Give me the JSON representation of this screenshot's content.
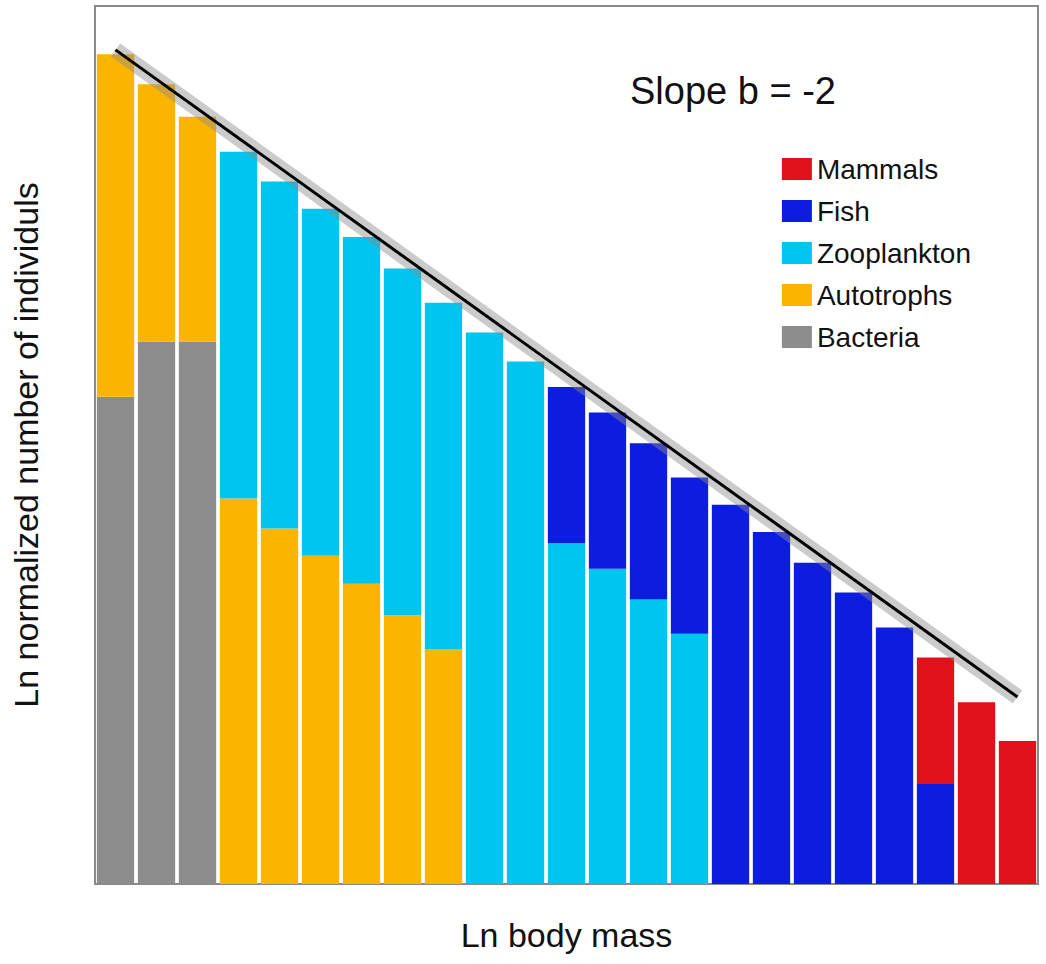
{
  "chart_data": {
    "type": "bar",
    "stacked": true,
    "x_label": "Ln body mass",
    "y_label": "Ln normalized number of individuls",
    "annotation": "Slope b = -2",
    "categories": [
      null,
      null,
      null,
      null,
      null,
      null,
      null,
      null,
      null,
      null,
      null,
      null,
      null,
      null,
      null,
      null,
      null,
      null,
      null,
      null,
      null,
      null,
      null
    ],
    "ylim": [
      0,
      100
    ],
    "tick_labels": false,
    "grid": false,
    "legend": "top-right",
    "series": [
      {
        "name": "Mammals",
        "color": "#e0111b",
        "values": [
          null,
          null,
          null,
          null,
          null,
          null,
          null,
          null,
          null,
          null,
          null,
          null,
          null,
          null,
          null,
          null,
          null,
          null,
          null,
          null,
          14.4,
          20.7,
          16.3
        ]
      },
      {
        "name": "Fish",
        "color": "#0c1ddf",
        "values": [
          null,
          null,
          null,
          null,
          null,
          null,
          null,
          null,
          null,
          null,
          null,
          17.8,
          17.8,
          17.8,
          17.8,
          43.2,
          40.1,
          36.6,
          33.2,
          29.2,
          11.4,
          null,
          null
        ]
      },
      {
        "name": "Zooplankton",
        "color": "#00c5f0",
        "values": [
          null,
          null,
          null,
          39.5,
          39.5,
          39.5,
          39.5,
          39.5,
          39.5,
          62.8,
          59.5,
          38.8,
          35.9,
          32.4,
          28.5,
          null,
          null,
          null,
          null,
          null,
          null,
          null,
          null
        ]
      },
      {
        "name": "Autotrophs",
        "color": "#fbb400",
        "values": [
          39.0,
          29.3,
          25.6,
          43.9,
          40.5,
          37.4,
          34.2,
          30.6,
          26.7,
          null,
          null,
          null,
          null,
          null,
          null,
          null,
          null,
          null,
          null,
          null,
          null,
          null,
          null
        ]
      },
      {
        "name": "Bacteria",
        "color": "#8c8c8c",
        "values": [
          55.5,
          61.8,
          61.8,
          null,
          null,
          null,
          null,
          null,
          null,
          null,
          null,
          null,
          null,
          null,
          null,
          null,
          null,
          null,
          null,
          null,
          null,
          null,
          null
        ]
      }
    ],
    "trend_line": {
      "color": "#000000",
      "values": [
        95.0,
        null,
        null,
        null,
        null,
        null,
        null,
        null,
        null,
        null,
        null,
        null,
        null,
        null,
        null,
        null,
        null,
        null,
        null,
        null,
        null,
        null,
        21.3
      ]
    }
  }
}
